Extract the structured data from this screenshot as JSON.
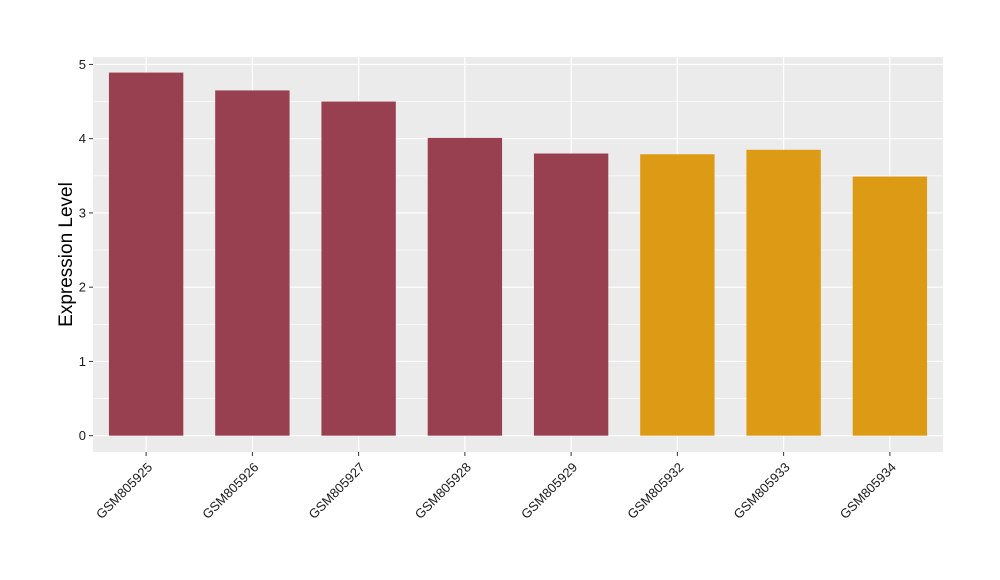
{
  "chart_data": {
    "type": "bar",
    "title": "",
    "xlabel": "",
    "ylabel": "Expression Level",
    "ylim": [
      -0.22,
      5.1
    ],
    "yticks": [
      0,
      1,
      2,
      3,
      4,
      5
    ],
    "grid": true,
    "legend": "none",
    "categories": [
      "GSM805925",
      "GSM805926",
      "GSM805927",
      "GSM805928",
      "GSM805929",
      "GSM805932",
      "GSM805933",
      "GSM805934"
    ],
    "values": [
      4.89,
      4.65,
      4.5,
      4.01,
      3.8,
      3.79,
      3.85,
      3.49
    ],
    "group_colors": [
      "#98404f",
      "#98404f",
      "#98404f",
      "#98404f",
      "#98404f",
      "#dd9a14",
      "#dd9a14",
      "#dd9a14"
    ]
  }
}
